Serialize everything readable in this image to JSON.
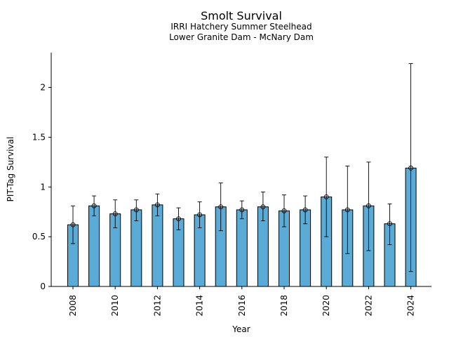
{
  "chart_data": {
    "type": "bar",
    "title": "Smolt Survival",
    "subtitle_lines": [
      "IRRI Hatchery Summer Steelhead",
      "Lower Granite Dam - McNary Dam"
    ],
    "xlabel": "Year",
    "ylabel": "PIT-Tag Survival",
    "ylim": [
      0,
      2.35
    ],
    "y_ticks": [
      0,
      0.5,
      1,
      1.5,
      2
    ],
    "y_tick_labels": [
      "0",
      "0.5",
      "1",
      "1.5",
      "2"
    ],
    "x_tick_labels": [
      "2008",
      "2010",
      "2012",
      "2014",
      "2016",
      "2018",
      "2020",
      "2022",
      "2024"
    ],
    "grid": false,
    "bar_color": "#5aabd6",
    "categories": [
      "2008",
      "2009",
      "2010",
      "2011",
      "2012",
      "2013",
      "2014",
      "2015",
      "2016",
      "2017",
      "2018",
      "2019",
      "2020",
      "2021",
      "2022",
      "2023",
      "2024"
    ],
    "values": [
      0.62,
      0.81,
      0.73,
      0.77,
      0.82,
      0.68,
      0.72,
      0.8,
      0.77,
      0.8,
      0.76,
      0.77,
      0.9,
      0.77,
      0.81,
      0.63,
      1.19
    ],
    "error_low": [
      0.43,
      0.71,
      0.59,
      0.66,
      0.71,
      0.57,
      0.59,
      0.56,
      0.68,
      0.66,
      0.6,
      0.63,
      0.5,
      0.33,
      0.36,
      0.42,
      0.15
    ],
    "error_high": [
      0.81,
      0.91,
      0.87,
      0.87,
      0.93,
      0.79,
      0.85,
      1.04,
      0.86,
      0.95,
      0.92,
      0.91,
      1.3,
      1.21,
      1.25,
      0.83,
      2.24
    ]
  }
}
